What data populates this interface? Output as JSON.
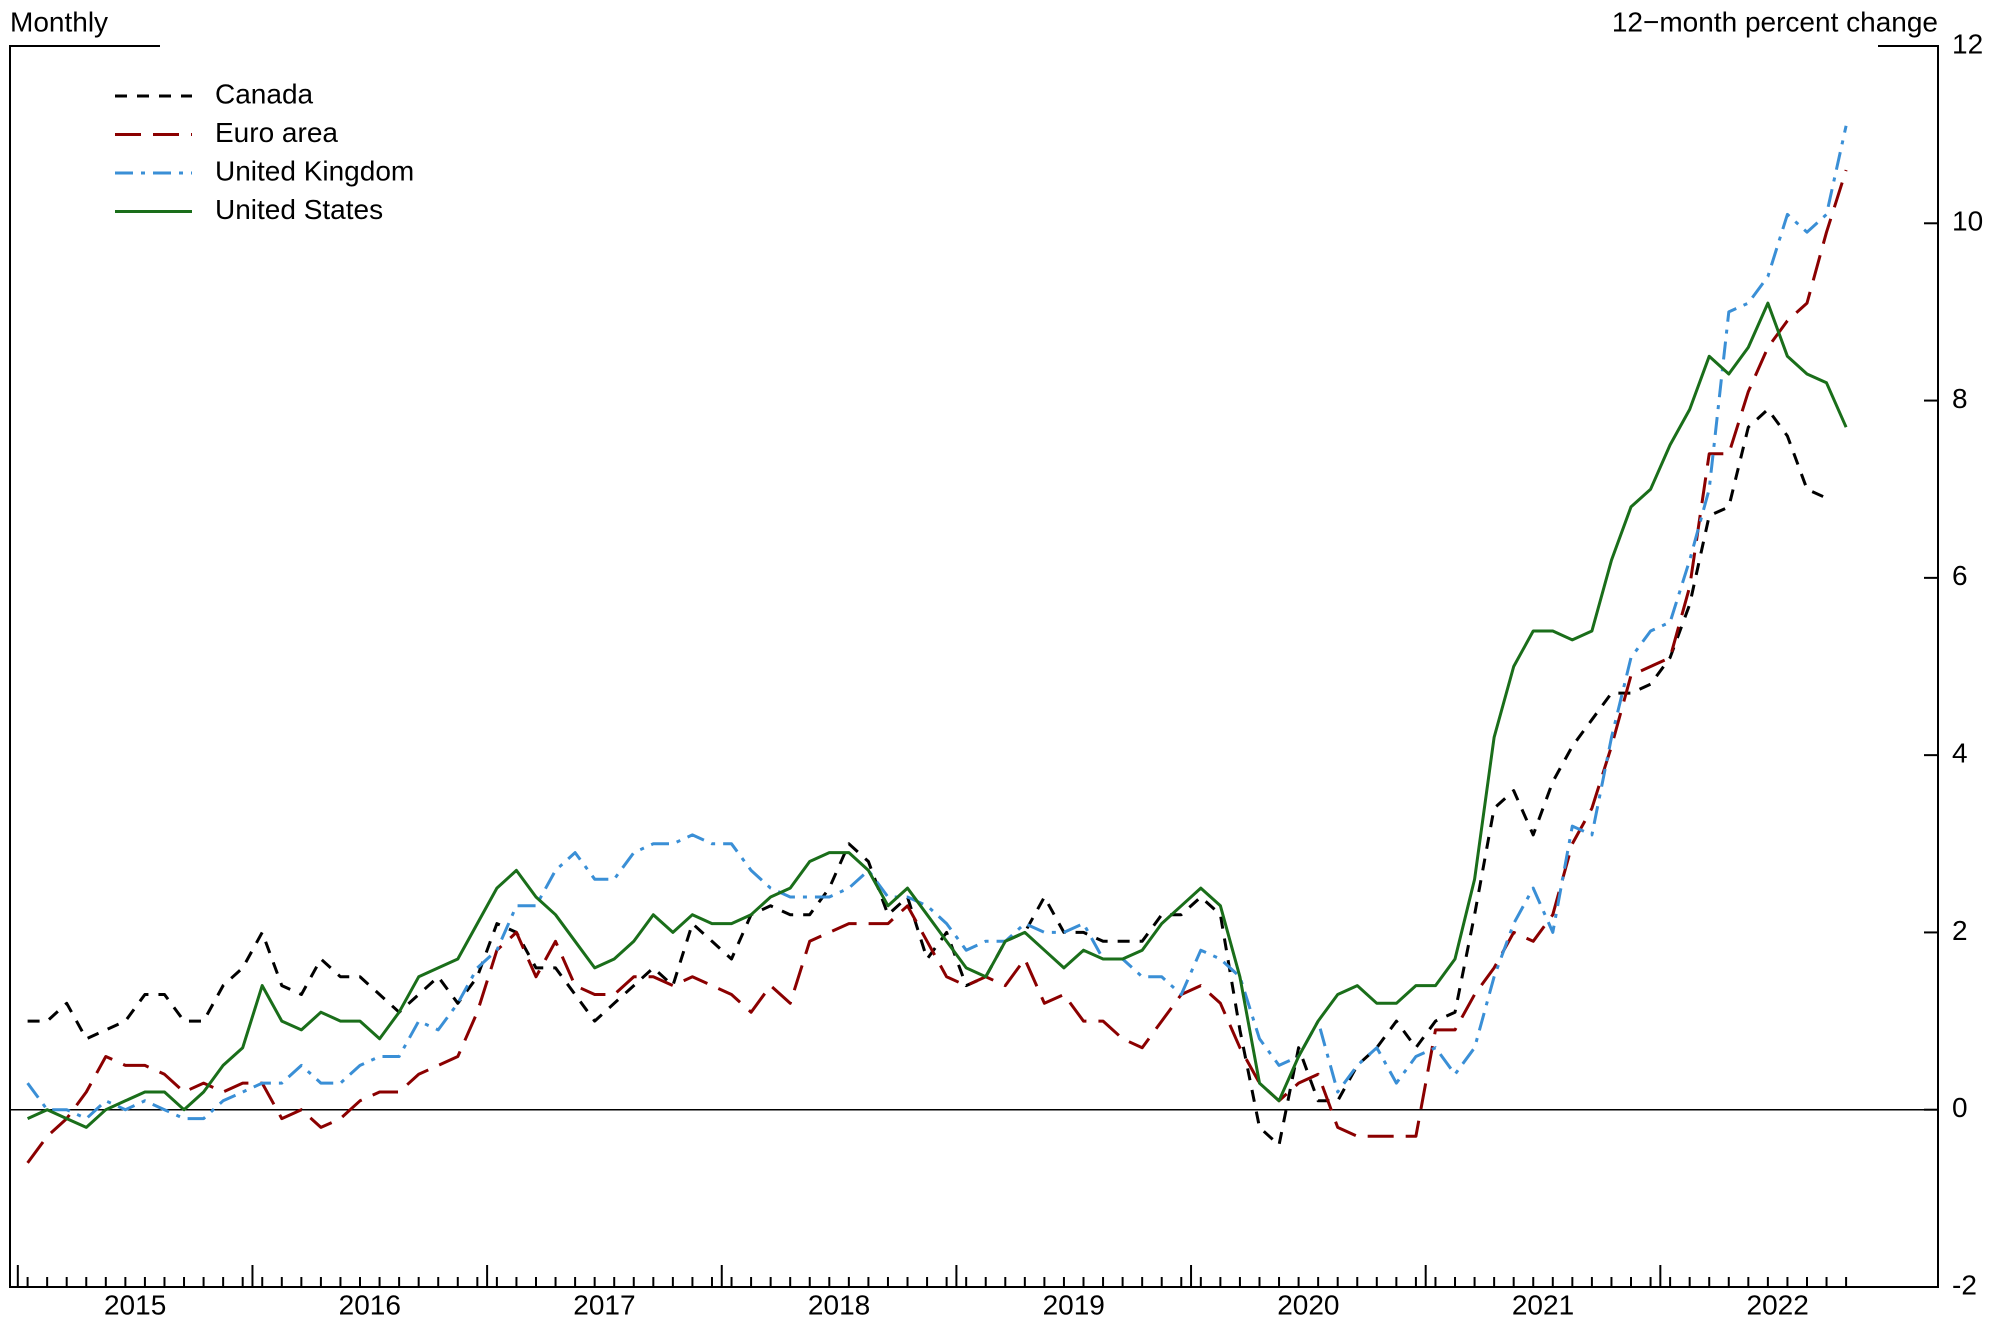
{
  "chart_data": {
    "type": "line",
    "title_left": "Monthly",
    "title_right": "12−month percent change",
    "categories": [
      null,
      null,
      null,
      null,
      null,
      null,
      "2015",
      null,
      null,
      null,
      null,
      null,
      null,
      null,
      null,
      null,
      null,
      null,
      "2016",
      null,
      null,
      null,
      null,
      null,
      null,
      null,
      null,
      null,
      null,
      null,
      "2017",
      null,
      null,
      null,
      null,
      null,
      null,
      null,
      null,
      null,
      null,
      null,
      "2018",
      null,
      null,
      null,
      null,
      null,
      null,
      null,
      null,
      null,
      null,
      null,
      "2019",
      null,
      null,
      null,
      null,
      null,
      null,
      null,
      null,
      null,
      null,
      null,
      "2020",
      null,
      null,
      null,
      null,
      null,
      null,
      null,
      null,
      null,
      null,
      null,
      "2021",
      null,
      null,
      null,
      null,
      null,
      null,
      null,
      null,
      null,
      null,
      null,
      "2022",
      null,
      null,
      null
    ],
    "series": [
      {
        "name": "Canada",
        "color": "#000000",
        "dash": "12 10",
        "values": [
          1.0,
          1.0,
          1.2,
          0.8,
          0.9,
          1.0,
          1.3,
          1.3,
          1.0,
          1.0,
          1.4,
          1.6,
          2.0,
          1.4,
          1.3,
          1.7,
          1.5,
          1.5,
          1.3,
          1.1,
          1.3,
          1.5,
          1.2,
          1.5,
          2.1,
          2.0,
          1.6,
          1.6,
          1.3,
          1.0,
          1.2,
          1.4,
          1.6,
          1.4,
          2.1,
          1.9,
          1.7,
          2.2,
          2.3,
          2.2,
          2.2,
          2.5,
          3.0,
          2.8,
          2.2,
          2.4,
          1.7,
          2.0,
          1.4,
          1.5,
          1.9,
          2.0,
          2.4,
          2.0,
          2.0,
          1.9,
          1.9,
          1.9,
          2.2,
          2.2,
          2.4,
          2.2,
          0.9,
          -0.2,
          -0.4,
          0.7,
          0.1,
          0.1,
          0.5,
          0.7,
          1.0,
          0.7,
          1.0,
          1.1,
          2.2,
          3.4,
          3.6,
          3.1,
          3.7,
          4.1,
          4.4,
          4.7,
          4.7,
          4.8,
          5.1,
          5.7,
          6.7,
          6.8,
          7.7,
          7.9,
          7.6,
          7.0,
          6.9,
          null
        ]
      },
      {
        "name": "Euro area",
        "color": "#8b0000",
        "dash": "26 12",
        "values": [
          -0.6,
          -0.3,
          -0.1,
          0.2,
          0.6,
          0.5,
          0.5,
          0.4,
          0.2,
          0.3,
          0.2,
          0.3,
          0.3,
          -0.1,
          0.0,
          -0.2,
          -0.1,
          0.1,
          0.2,
          0.2,
          0.4,
          0.5,
          0.6,
          1.1,
          1.8,
          2.0,
          1.5,
          1.9,
          1.4,
          1.3,
          1.3,
          1.5,
          1.5,
          1.4,
          1.5,
          1.4,
          1.3,
          1.1,
          1.4,
          1.2,
          1.9,
          2.0,
          2.1,
          2.1,
          2.1,
          2.3,
          1.9,
          1.5,
          1.4,
          1.5,
          1.4,
          1.7,
          1.2,
          1.3,
          1.0,
          1.0,
          0.8,
          0.7,
          1.0,
          1.3,
          1.4,
          1.2,
          0.7,
          0.3,
          0.1,
          0.3,
          0.4,
          -0.2,
          -0.3,
          -0.3,
          -0.3,
          -0.3,
          0.9,
          0.9,
          1.3,
          1.6,
          2.0,
          1.9,
          2.2,
          3.0,
          3.4,
          4.1,
          4.9,
          5.0,
          5.1,
          5.9,
          7.4,
          7.4,
          8.1,
          8.6,
          8.9,
          9.1,
          9.9,
          10.6
        ]
      },
      {
        "name": "United Kingdom",
        "color": "#3a8fd6",
        "dash": "18 8 4 8",
        "values": [
          0.3,
          0.0,
          0.0,
          -0.1,
          0.1,
          0.0,
          0.1,
          0.0,
          -0.1,
          -0.1,
          0.1,
          0.2,
          0.3,
          0.3,
          0.5,
          0.3,
          0.3,
          0.5,
          0.6,
          0.6,
          1.0,
          0.9,
          1.2,
          1.6,
          1.8,
          2.3,
          2.3,
          2.7,
          2.9,
          2.6,
          2.6,
          2.9,
          3.0,
          3.0,
          3.1,
          3.0,
          3.0,
          2.7,
          2.5,
          2.4,
          2.4,
          2.4,
          2.5,
          2.7,
          2.4,
          2.4,
          2.3,
          2.1,
          1.8,
          1.9,
          1.9,
          2.1,
          2.0,
          2.0,
          2.1,
          1.7,
          1.7,
          1.5,
          1.5,
          1.3,
          1.8,
          1.7,
          1.5,
          0.8,
          0.5,
          0.6,
          1.0,
          0.2,
          0.5,
          0.7,
          0.3,
          0.6,
          0.7,
          0.4,
          0.7,
          1.5,
          2.1,
          2.5,
          2.0,
          3.2,
          3.1,
          4.2,
          5.1,
          5.4,
          5.5,
          6.2,
          7.0,
          9.0,
          9.1,
          9.4,
          10.1,
          9.9,
          10.1,
          11.1
        ]
      },
      {
        "name": "United States",
        "color": "#1a6e1a",
        "dash": "none",
        "values": [
          -0.1,
          0.0,
          -0.1,
          -0.2,
          0.0,
          0.1,
          0.2,
          0.2,
          0.0,
          0.2,
          0.5,
          0.7,
          1.4,
          1.0,
          0.9,
          1.1,
          1.0,
          1.0,
          0.8,
          1.1,
          1.5,
          1.6,
          1.7,
          2.1,
          2.5,
          2.7,
          2.4,
          2.2,
          1.9,
          1.6,
          1.7,
          1.9,
          2.2,
          2.0,
          2.2,
          2.1,
          2.1,
          2.2,
          2.4,
          2.5,
          2.8,
          2.9,
          2.9,
          2.7,
          2.3,
          2.5,
          2.2,
          1.9,
          1.6,
          1.5,
          1.9,
          2.0,
          1.8,
          1.6,
          1.8,
          1.7,
          1.7,
          1.8,
          2.1,
          2.3,
          2.5,
          2.3,
          1.5,
          0.3,
          0.1,
          0.6,
          1.0,
          1.3,
          1.4,
          1.2,
          1.2,
          1.4,
          1.4,
          1.7,
          2.6,
          4.2,
          5.0,
          5.4,
          5.4,
          5.3,
          5.4,
          6.2,
          6.8,
          7.0,
          7.5,
          7.9,
          8.5,
          8.3,
          8.6,
          9.1,
          8.5,
          8.3,
          8.2,
          7.7
        ]
      }
    ],
    "ylim": [
      -2,
      12
    ],
    "yticks": [
      -2,
      0,
      2,
      4,
      6,
      8,
      10,
      12
    ],
    "zero_line": true,
    "legend": "upper left"
  }
}
